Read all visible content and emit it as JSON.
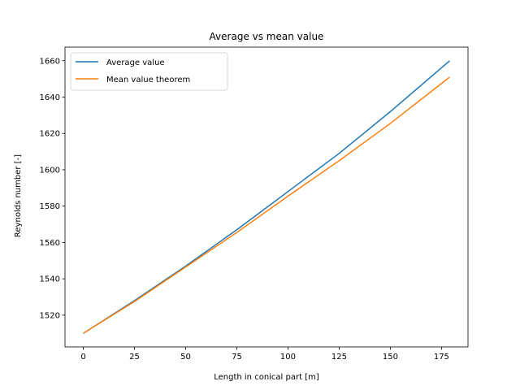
{
  "chart_data": {
    "type": "line",
    "title": "Average vs mean value",
    "xlabel": "Length in conical part [m]",
    "ylabel": "Reynolds number [-]",
    "xlim": [
      -8.95,
      187.95
    ],
    "ylim": [
      1502.5,
      1667.5
    ],
    "xticks": [
      0,
      25,
      50,
      75,
      100,
      125,
      150,
      175
    ],
    "yticks": [
      1520,
      1540,
      1560,
      1580,
      1600,
      1620,
      1640,
      1660
    ],
    "grid": false,
    "legend_position": "top-left",
    "series": [
      {
        "name": "Average value",
        "color": "#1f77b4",
        "x": [
          0,
          25,
          50,
          75,
          100,
          125,
          150,
          179
        ],
        "y": [
          1510,
          1528,
          1547,
          1567,
          1588,
          1609,
          1632,
          1660
        ]
      },
      {
        "name": "Mean value theorem",
        "color": "#ff7f0e",
        "x": [
          0,
          25,
          50,
          75,
          100,
          125,
          150,
          179
        ],
        "y": [
          1510,
          1527.5,
          1546.5,
          1565.5,
          1585.5,
          1605,
          1625.5,
          1651
        ]
      }
    ]
  }
}
